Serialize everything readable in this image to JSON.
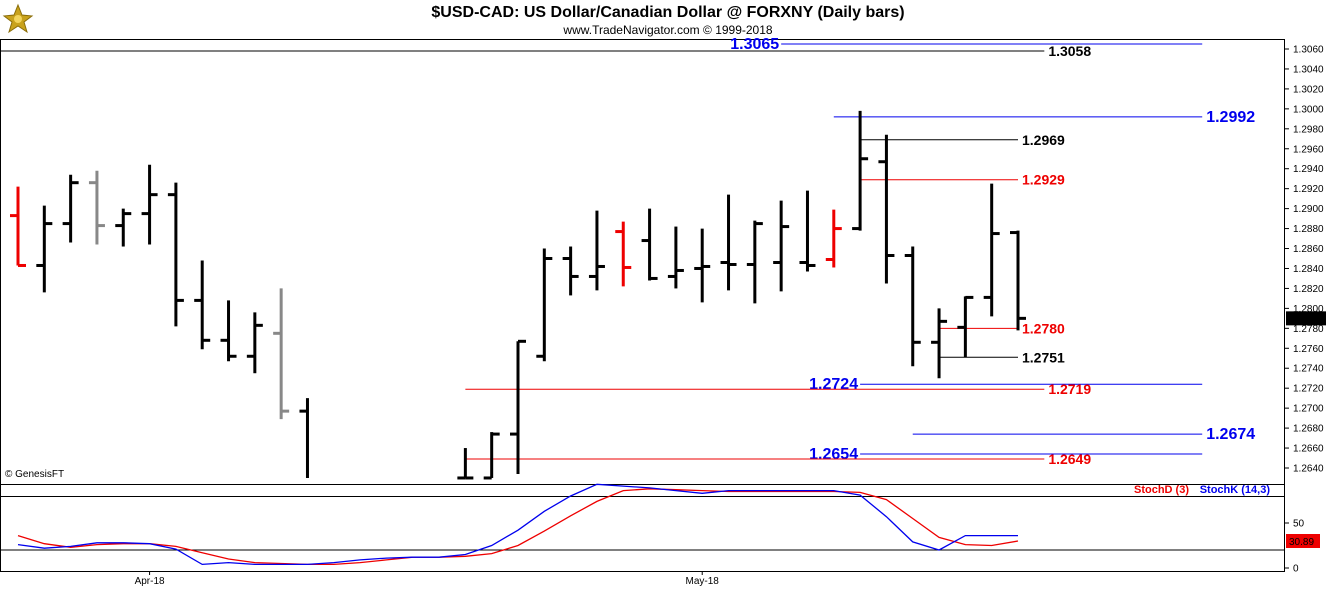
{
  "header": {
    "title": "$USD-CAD:  US Dollar/Canadian Dollar @ FORXNY  (Daily bars)",
    "subtitle": "www.TradeNavigator.com © 1999-2018"
  },
  "watermark": "© GenesisFT",
  "colors": {
    "blue": "#0000ee",
    "red": "#ee0000",
    "black": "#000000",
    "gray": "#888888",
    "logo_gold": "#c9a21c"
  },
  "chart_data": [
    {
      "type": "ohlc",
      "ylim": [
        1.263,
        1.3075
      ],
      "y_ticks": [
        "1.3060",
        "1.3040",
        "1.3020",
        "1.3000",
        "1.2980",
        "1.2960",
        "1.2940",
        "1.2920",
        "1.2900",
        "1.2880",
        "1.2860",
        "1.2840",
        "1.2820",
        "1.2800",
        "1.2780",
        "1.2760",
        "1.2740",
        "1.2720",
        "1.2700",
        "1.2680",
        "1.2660",
        "1.2640"
      ],
      "last_price": "1.2790",
      "bars": [
        {
          "x": 0,
          "o": 1.2893,
          "h": 1.2922,
          "l": 1.2843,
          "c": 1.2843,
          "color": "red"
        },
        {
          "x": 1,
          "o": 1.2843,
          "h": 1.2903,
          "l": 1.2816,
          "c": 1.2885,
          "color": "black"
        },
        {
          "x": 2,
          "o": 1.2885,
          "h": 1.2934,
          "l": 1.2866,
          "c": 1.2926,
          "color": "black"
        },
        {
          "x": 3,
          "o": 1.2926,
          "h": 1.2938,
          "l": 1.2864,
          "c": 1.2883,
          "color": "gray"
        },
        {
          "x": 4,
          "o": 1.2883,
          "h": 1.29,
          "l": 1.2862,
          "c": 1.2895,
          "color": "black"
        },
        {
          "x": 5,
          "o": 1.2895,
          "h": 1.2944,
          "l": 1.2864,
          "c": 1.2914,
          "color": "black"
        },
        {
          "x": 6,
          "o": 1.2914,
          "h": 1.2926,
          "l": 1.2782,
          "c": 1.2808,
          "color": "black"
        },
        {
          "x": 7,
          "o": 1.2808,
          "h": 1.2848,
          "l": 1.2759,
          "c": 1.2768,
          "color": "black"
        },
        {
          "x": 8,
          "o": 1.2768,
          "h": 1.2808,
          "l": 1.2747,
          "c": 1.2752,
          "color": "black"
        },
        {
          "x": 9,
          "o": 1.2752,
          "h": 1.2796,
          "l": 1.2735,
          "c": 1.2783,
          "color": "black"
        },
        {
          "x": 10,
          "o": 1.2775,
          "h": 1.282,
          "l": 1.2689,
          "c": 1.2697,
          "color": "gray"
        },
        {
          "x": 11,
          "o": 1.2697,
          "h": 1.271,
          "l": 1.2628,
          "c": 1.2628,
          "color": "black"
        },
        {
          "x": 17,
          "o": 1.263,
          "h": 1.266,
          "l": 1.263,
          "c": 1.263,
          "color": "black"
        },
        {
          "x": 18,
          "o": 1.263,
          "h": 1.2676,
          "l": 1.263,
          "c": 1.2674,
          "color": "black"
        },
        {
          "x": 19,
          "o": 1.2674,
          "h": 1.2767,
          "l": 1.2634,
          "c": 1.2767,
          "color": "black"
        },
        {
          "x": 20,
          "o": 1.2752,
          "h": 1.286,
          "l": 1.2747,
          "c": 1.285,
          "color": "black"
        },
        {
          "x": 21,
          "o": 1.285,
          "h": 1.2862,
          "l": 1.2813,
          "c": 1.2832,
          "color": "black"
        },
        {
          "x": 22,
          "o": 1.2832,
          "h": 1.2898,
          "l": 1.2818,
          "c": 1.2842,
          "color": "black"
        },
        {
          "x": 23,
          "o": 1.2877,
          "h": 1.2887,
          "l": 1.2822,
          "c": 1.2841,
          "color": "red"
        },
        {
          "x": 24,
          "o": 1.2868,
          "h": 1.29,
          "l": 1.2828,
          "c": 1.283,
          "color": "black"
        },
        {
          "x": 25,
          "o": 1.2832,
          "h": 1.2882,
          "l": 1.282,
          "c": 1.2838,
          "color": "black"
        },
        {
          "x": 26,
          "o": 1.284,
          "h": 1.288,
          "l": 1.2806,
          "c": 1.2842,
          "color": "black"
        },
        {
          "x": 27,
          "o": 1.2846,
          "h": 1.2914,
          "l": 1.2818,
          "c": 1.2844,
          "color": "black"
        },
        {
          "x": 28,
          "o": 1.2844,
          "h": 1.2888,
          "l": 1.2805,
          "c": 1.2885,
          "color": "black"
        },
        {
          "x": 29,
          "o": 1.2846,
          "h": 1.2908,
          "l": 1.2817,
          "c": 1.2882,
          "color": "black"
        },
        {
          "x": 30,
          "o": 1.2846,
          "h": 1.2918,
          "l": 1.2837,
          "c": 1.2843,
          "color": "black"
        },
        {
          "x": 31,
          "o": 1.2849,
          "h": 1.2899,
          "l": 1.2841,
          "c": 1.288,
          "color": "red"
        },
        {
          "x": 32,
          "o": 1.288,
          "h": 1.2998,
          "l": 1.2878,
          "c": 1.295,
          "color": "black"
        },
        {
          "x": 33,
          "o": 1.2947,
          "h": 1.2974,
          "l": 1.2825,
          "c": 1.2853,
          "color": "black"
        },
        {
          "x": 34,
          "o": 1.2853,
          "h": 1.2862,
          "l": 1.2742,
          "c": 1.2766,
          "color": "black"
        },
        {
          "x": 35,
          "o": 1.2766,
          "h": 1.28,
          "l": 1.273,
          "c": 1.2787,
          "color": "black"
        },
        {
          "x": 36,
          "o": 1.2781,
          "h": 1.2812,
          "l": 1.2751,
          "c": 1.2811,
          "color": "black"
        },
        {
          "x": 37,
          "o": 1.2811,
          "h": 1.2925,
          "l": 1.2792,
          "c": 1.2875,
          "color": "black"
        },
        {
          "x": 38,
          "o": 1.2876,
          "h": 1.2878,
          "l": 1.2778,
          "c": 1.279,
          "color": "black"
        }
      ],
      "levels": [
        {
          "value": 1.3065,
          "label": "1.3065",
          "color": "blue",
          "x_start": 29,
          "x_end": 45,
          "label_pos": "left"
        },
        {
          "value": 1.3058,
          "label": "1.3058",
          "color": "black",
          "x_start": -20,
          "x_end": 39,
          "label_pos": "right"
        },
        {
          "value": 1.2992,
          "label": "1.2992",
          "color": "blue",
          "x_start": 31,
          "x_end": 45,
          "label_pos": "right"
        },
        {
          "value": 1.2969,
          "label": "1.2969",
          "color": "black",
          "x_start": 32,
          "x_end": 38,
          "label_pos": "right"
        },
        {
          "value": 1.2929,
          "label": "1.2929",
          "color": "red",
          "x_start": 32,
          "x_end": 38,
          "label_pos": "right"
        },
        {
          "value": 1.278,
          "label": "1.2780",
          "color": "red",
          "x_start": 35,
          "x_end": 38,
          "label_pos": "right"
        },
        {
          "value": 1.2751,
          "label": "1.2751",
          "color": "black",
          "x_start": 35,
          "x_end": 38,
          "label_pos": "right"
        },
        {
          "value": 1.2724,
          "label": "1.2724",
          "color": "blue",
          "x_start": 32,
          "x_end": 45,
          "label_pos": "left"
        },
        {
          "value": 1.2719,
          "label": "1.2719",
          "color": "red",
          "x_start": 17,
          "x_end": 39,
          "label_pos": "right"
        },
        {
          "value": 1.2674,
          "label": "1.2674",
          "color": "blue",
          "x_start": 34,
          "x_end": 45,
          "label_pos": "right"
        },
        {
          "value": 1.2654,
          "label": "1.2654",
          "color": "blue",
          "x_start": 32,
          "x_end": 45,
          "label_pos": "left"
        },
        {
          "value": 1.2649,
          "label": "1.2649",
          "color": "red",
          "x_start": 17,
          "x_end": 39,
          "label_pos": "right"
        }
      ]
    },
    {
      "type": "line",
      "ylim": [
        0,
        100
      ],
      "y_ticks": [
        "50",
        "0"
      ],
      "legend": [
        {
          "name": "StochD (3)",
          "color": "red"
        },
        {
          "name": "StochK (14,3)",
          "color": "blue"
        }
      ],
      "last_value": "30.89",
      "series": [
        {
          "name": "StochD (3)",
          "color": "red",
          "points": [
            [
              0,
              36
            ],
            [
              1,
              27
            ],
            [
              2,
              23
            ],
            [
              3,
              26
            ],
            [
              4,
              27
            ],
            [
              5,
              27
            ],
            [
              6,
              24
            ],
            [
              7,
              17
            ],
            [
              8,
              10
            ],
            [
              9,
              6
            ],
            [
              10,
              5
            ],
            [
              11,
              4
            ],
            [
              12,
              4
            ],
            [
              13,
              6
            ],
            [
              14,
              9
            ],
            [
              15,
              12
            ],
            [
              16,
              12
            ],
            [
              17,
              13
            ],
            [
              18,
              16
            ],
            [
              19,
              25
            ],
            [
              20,
              41
            ],
            [
              21,
              58
            ],
            [
              22,
              74
            ],
            [
              23,
              86
            ],
            [
              24,
              88
            ],
            [
              25,
              87
            ],
            [
              26,
              86
            ],
            [
              27,
              85
            ],
            [
              28,
              85
            ],
            [
              29,
              85
            ],
            [
              30,
              85
            ],
            [
              31,
              85
            ],
            [
              32,
              84
            ],
            [
              33,
              76
            ],
            [
              34,
              55
            ],
            [
              35,
              34
            ],
            [
              36,
              26
            ],
            [
              37,
              25
            ],
            [
              38,
              30
            ]
          ]
        },
        {
          "name": "StochK (14,3)",
          "color": "blue",
          "points": [
            [
              0,
              26
            ],
            [
              1,
              22
            ],
            [
              2,
              24
            ],
            [
              3,
              28
            ],
            [
              4,
              28
            ],
            [
              5,
              27
            ],
            [
              6,
              21
            ],
            [
              7,
              4
            ],
            [
              8,
              6
            ],
            [
              9,
              4
            ],
            [
              10,
              4
            ],
            [
              11,
              4
            ],
            [
              12,
              6
            ],
            [
              13,
              9
            ],
            [
              14,
              11
            ],
            [
              15,
              12
            ],
            [
              16,
              12
            ],
            [
              17,
              15
            ],
            [
              18,
              25
            ],
            [
              19,
              42
            ],
            [
              20,
              63
            ],
            [
              21,
              80
            ],
            [
              22,
              93
            ],
            [
              23,
              91
            ],
            [
              24,
              89
            ],
            [
              25,
              86
            ],
            [
              26,
              83
            ],
            [
              27,
              86
            ],
            [
              28,
              86
            ],
            [
              29,
              86
            ],
            [
              30,
              86
            ],
            [
              31,
              86
            ],
            [
              32,
              81
            ],
            [
              33,
              57
            ],
            [
              34,
              29
            ],
            [
              35,
              20
            ],
            [
              36,
              36
            ],
            [
              37,
              36
            ],
            [
              38,
              36
            ]
          ]
        }
      ],
      "x_tick_labels": [
        {
          "x": 5,
          "label": "Apr-18"
        },
        {
          "x": 26,
          "label": "May-18"
        }
      ]
    }
  ]
}
